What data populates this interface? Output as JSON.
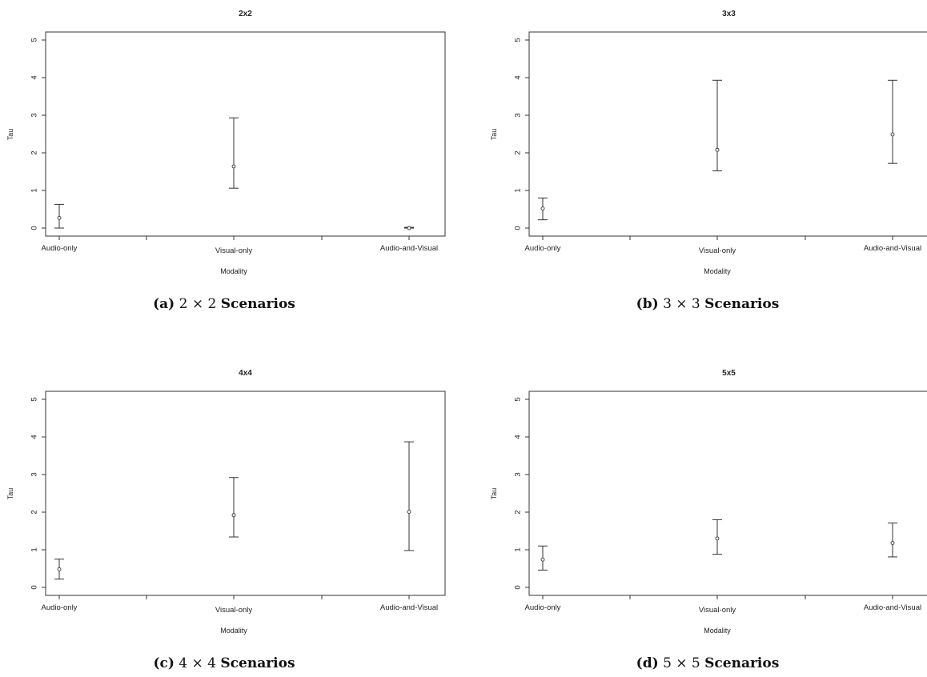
{
  "chart_data": [
    {
      "type": "scatter",
      "title": "2x2",
      "xlabel": "Modality",
      "ylabel": "Tau",
      "ylim": [
        0,
        5
      ],
      "yticks": [
        0,
        1,
        2,
        3,
        4,
        5
      ],
      "categories": [
        "Audio-only",
        "Visual-only",
        "Audio-and-Visual"
      ],
      "values": [
        0.27,
        1.64,
        0.0
      ],
      "lower": [
        0.0,
        1.06,
        0.0
      ],
      "upper": [
        0.63,
        2.93,
        0.02
      ],
      "caption": {
        "tag": "(a)",
        "dims": "2 × 2",
        "word": "Scenarios"
      }
    },
    {
      "type": "scatter",
      "title": "3x3",
      "xlabel": "Modality",
      "ylabel": "Tau",
      "ylim": [
        0,
        5
      ],
      "yticks": [
        0,
        1,
        2,
        3,
        4,
        5
      ],
      "categories": [
        "Audio-only",
        "Visual-only",
        "Audio-and-Visual"
      ],
      "values": [
        0.52,
        2.08,
        2.49
      ],
      "lower": [
        0.22,
        1.52,
        1.72
      ],
      "upper": [
        0.8,
        3.93,
        3.93
      ],
      "caption": {
        "tag": "(b)",
        "dims": "3 × 3",
        "word": "Scenarios"
      }
    },
    {
      "type": "scatter",
      "title": "4x4",
      "xlabel": "Modality",
      "ylabel": "Tau",
      "ylim": [
        0,
        5
      ],
      "yticks": [
        0,
        1,
        2,
        3,
        4,
        5
      ],
      "categories": [
        "Audio-only",
        "Visual-only",
        "Audio-and-Visual"
      ],
      "values": [
        0.48,
        1.92,
        2.01
      ],
      "lower": [
        0.22,
        1.34,
        0.98
      ],
      "upper": [
        0.75,
        2.92,
        3.87
      ],
      "caption": {
        "tag": "(c)",
        "dims": "4 × 4",
        "word": "Scenarios"
      }
    },
    {
      "type": "scatter",
      "title": "5x5",
      "xlabel": "Modality",
      "ylabel": "Tau",
      "ylim": [
        0,
        5
      ],
      "yticks": [
        0,
        1,
        2,
        3,
        4,
        5
      ],
      "categories": [
        "Audio-only",
        "Visual-only",
        "Audio-and-Visual"
      ],
      "values": [
        0.74,
        1.3,
        1.18
      ],
      "lower": [
        0.46,
        0.88,
        0.81
      ],
      "upper": [
        1.1,
        1.8,
        1.71
      ],
      "caption": {
        "tag": "(d)",
        "dims": "5 × 5",
        "word": "Scenarios"
      }
    }
  ]
}
